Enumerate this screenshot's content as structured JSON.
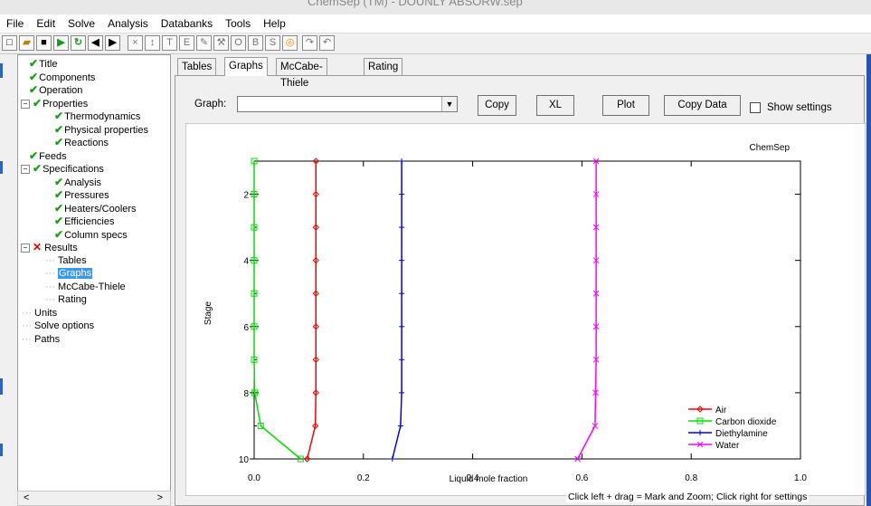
{
  "window": {
    "title": "ChemSep (TM) - DOUNLY ABSORW.sep"
  },
  "menu": [
    "File",
    "Edit",
    "Solve",
    "Analysis",
    "Databanks",
    "Tools",
    "Help"
  ],
  "toolbar": {
    "buttons": [
      "new-icon",
      "open-icon",
      "save-icon",
      "run-icon",
      "refresh-icon",
      "back-icon",
      "forward-icon",
      "delete-icon",
      "sort-icon",
      "t-icon",
      "e-icon",
      "edit-icon",
      "tools-icon",
      "o-icon",
      "b-icon",
      "s-icon",
      "target-icon",
      "redo-icon",
      "undo-icon"
    ]
  },
  "tree": [
    {
      "label": "Title",
      "check": true,
      "indent": 1
    },
    {
      "label": "Components",
      "check": true,
      "indent": 1
    },
    {
      "label": "Operation",
      "check": true,
      "indent": 1
    },
    {
      "label": "Properties",
      "check": true,
      "indent": 0,
      "box": "−"
    },
    {
      "label": "Thermodynamics",
      "check": true,
      "indent": 2
    },
    {
      "label": "Physical properties",
      "check": true,
      "indent": 2
    },
    {
      "label": "Reactions",
      "check": true,
      "indent": 2
    },
    {
      "label": "Feeds",
      "check": true,
      "indent": 1
    },
    {
      "label": "Specifications",
      "check": true,
      "indent": 0,
      "box": "−"
    },
    {
      "label": "Analysis",
      "check": true,
      "indent": 2
    },
    {
      "label": "Pressures",
      "check": true,
      "indent": 2
    },
    {
      "label": "Heaters/Coolers",
      "check": true,
      "indent": 2
    },
    {
      "label": "Efficiencies",
      "check": true,
      "indent": 2
    },
    {
      "label": "Column specs",
      "check": true,
      "indent": 2
    },
    {
      "label": "Results",
      "cross": true,
      "indent": 0,
      "box": "−"
    },
    {
      "label": "Tables",
      "indent": 3
    },
    {
      "label": "Graphs",
      "indent": 3,
      "selected": true
    },
    {
      "label": "McCabe-Thiele",
      "indent": 3
    },
    {
      "label": "Rating",
      "indent": 3
    },
    {
      "label": "Units",
      "indent": 4
    },
    {
      "label": "Solve options",
      "indent": 4
    },
    {
      "label": "Paths",
      "indent": 4
    }
  ],
  "tabs": [
    "Tables",
    "Graphs",
    "McCabe-Thiele",
    "Rating"
  ],
  "graph_label": "Graph:",
  "graph_value": "",
  "buttons": {
    "copy": "Copy",
    "xl": "XL",
    "plot": "Plot",
    "copy_data": "Copy Data"
  },
  "show_settings": "Show settings",
  "status": "Click left + drag = Mark and Zoom; Click right for settings",
  "chart_data": {
    "type": "line",
    "title": "ChemSep",
    "xlabel": "Liquid mole fraction",
    "ylabel": "Stage",
    "xlim": [
      0,
      1
    ],
    "ylim": [
      1,
      10
    ],
    "y_inverted": true,
    "xticks": [
      "0.0",
      "0.2",
      "0.4",
      "0.6",
      "0.8",
      "1.0"
    ],
    "yticks": [
      "2",
      "4",
      "6",
      "8",
      "10"
    ],
    "stages": [
      1,
      2,
      3,
      4,
      5,
      6,
      7,
      8,
      9,
      10
    ],
    "series": [
      {
        "name": "Air",
        "color": "#ff0000",
        "marker": "diamond",
        "x": [
          0.113,
          0.113,
          0.113,
          0.113,
          0.113,
          0.113,
          0.113,
          0.113,
          0.112,
          0.097
        ]
      },
      {
        "name": "Carbon dioxide",
        "color": "#00e000",
        "marker": "square",
        "x": [
          0.0,
          0.0,
          0.0,
          0.0,
          0.0,
          0.0,
          0.0,
          0.001,
          0.012,
          0.085
        ]
      },
      {
        "name": "Diethylamine",
        "color": "#0000ff",
        "marker": "plus",
        "x": [
          0.27,
          0.27,
          0.27,
          0.27,
          0.27,
          0.27,
          0.27,
          0.27,
          0.268,
          0.253
        ]
      },
      {
        "name": "Water",
        "color": "#ff00ff",
        "marker": "x",
        "x": [
          0.626,
          0.626,
          0.626,
          0.626,
          0.626,
          0.626,
          0.626,
          0.625,
          0.624,
          0.592
        ]
      }
    ],
    "legend_position": "bottom-right"
  }
}
